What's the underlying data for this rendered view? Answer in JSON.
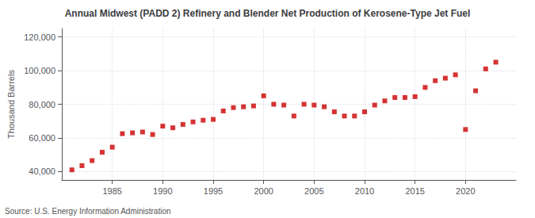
{
  "chart_data": {
    "type": "scatter",
    "title": "Annual Midwest (PADD 2) Refinery and Blender Net Production of Kerosene-Type Jet Fuel",
    "ylabel": "Thousand Barrels",
    "annotations": [
      "Source: U.S. Energy Information Administration"
    ],
    "x": [
      1981,
      1982,
      1983,
      1984,
      1985,
      1986,
      1987,
      1988,
      1989,
      1990,
      1991,
      1992,
      1993,
      1994,
      1995,
      1996,
      1997,
      1998,
      1999,
      2000,
      2001,
      2002,
      2003,
      2004,
      2005,
      2006,
      2007,
      2008,
      2009,
      2010,
      2011,
      2012,
      2013,
      2014,
      2015,
      2016,
      2017,
      2018,
      2019,
      2020,
      2021,
      2022,
      2023
    ],
    "values": [
      41000,
      43500,
      46500,
      51500,
      54500,
      62500,
      63000,
      63500,
      62000,
      67000,
      66000,
      68000,
      69500,
      70500,
      71000,
      76000,
      78000,
      78500,
      79000,
      85000,
      80000,
      79500,
      73000,
      80000,
      79500,
      78500,
      75500,
      73000,
      73000,
      75500,
      79500,
      82000,
      84000,
      84000,
      84500,
      90000,
      94000,
      95500,
      97500,
      65000,
      88000,
      101000,
      105000
    ],
    "color": "#cc0000",
    "marker": "square",
    "xlim": [
      1980,
      2025
    ],
    "xticks": [
      1985,
      1990,
      1995,
      2000,
      2005,
      2010,
      2015,
      2020
    ],
    "ylim": [
      35000,
      125000
    ],
    "yticks": [
      {
        "value": 40000,
        "label": "40,000"
      },
      {
        "value": 60000,
        "label": "60,000"
      },
      {
        "value": 80000,
        "label": "80,000"
      },
      {
        "value": 100000,
        "label": "100,000"
      },
      {
        "value": 120000,
        "label": "120,000"
      }
    ],
    "grid": true
  }
}
